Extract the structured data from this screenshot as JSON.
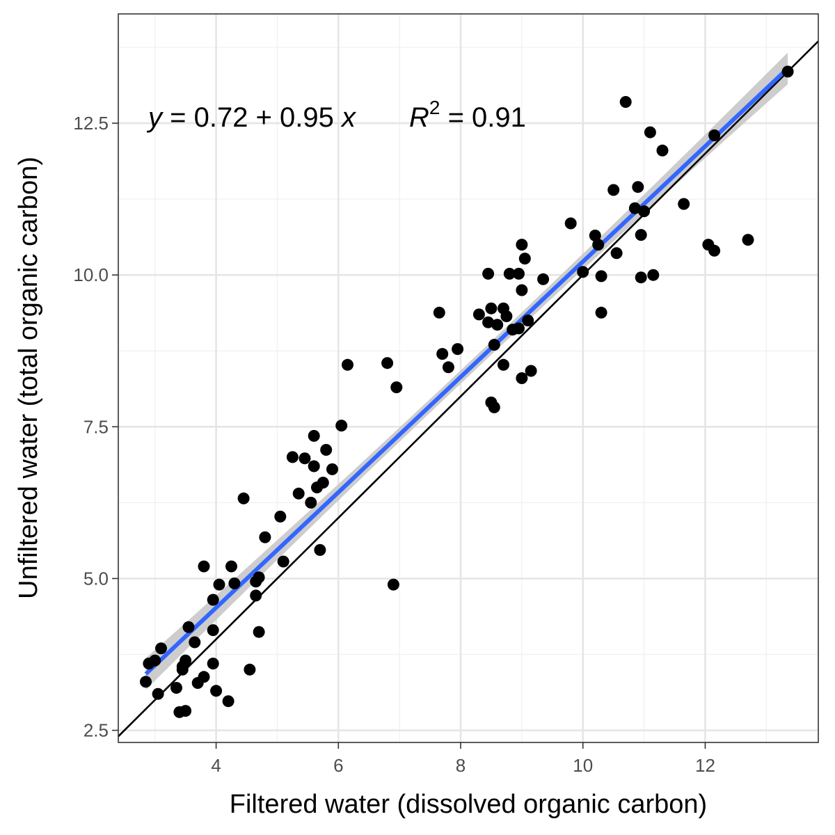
{
  "chart_data": {
    "type": "scatter",
    "xlabel": "Filtered water (dissolved organic carbon)",
    "ylabel": "Unfiltered water (total organic carbon)",
    "xlim": [
      2.4,
      13.85
    ],
    "ylim": [
      2.3,
      14.3
    ],
    "x_ticks": [
      4,
      6,
      8,
      10,
      12
    ],
    "x_tick_labels": [
      "4",
      "6",
      "8",
      "10",
      "12"
    ],
    "y_ticks": [
      2.5,
      5.0,
      7.5,
      10.0,
      12.5
    ],
    "y_tick_labels": [
      "2.5",
      "5.0",
      "7.5",
      "10.0",
      "12.5"
    ],
    "grid": true,
    "annotation": {
      "y_var": "y",
      "equation_rest": " = 0.72 + 0.95 ",
      "x_var": "x",
      "r_symbol": "R",
      "r_power": "2",
      "r_value": " = 0.91"
    },
    "regression": {
      "intercept": 0.72,
      "slope": 0.95,
      "x_range": [
        2.85,
        13.35
      ],
      "color": "#3366ff",
      "ci_color": "#c8c8c8"
    },
    "reference_line": {
      "slope": 1,
      "intercept": 0,
      "color": "#000000"
    },
    "points": [
      [
        2.85,
        3.3
      ],
      [
        2.9,
        3.6
      ],
      [
        3.0,
        3.65
      ],
      [
        3.05,
        3.1
      ],
      [
        3.1,
        3.85
      ],
      [
        3.35,
        3.2
      ],
      [
        3.4,
        2.8
      ],
      [
        3.45,
        3.5
      ],
      [
        3.45,
        3.55
      ],
      [
        3.5,
        2.82
      ],
      [
        3.5,
        3.65
      ],
      [
        3.55,
        4.2
      ],
      [
        3.65,
        3.95
      ],
      [
        3.7,
        3.28
      ],
      [
        3.8,
        5.2
      ],
      [
        3.8,
        3.38
      ],
      [
        3.95,
        4.15
      ],
      [
        3.95,
        4.65
      ],
      [
        3.95,
        3.6
      ],
      [
        4.0,
        3.15
      ],
      [
        4.05,
        4.9
      ],
      [
        4.2,
        2.98
      ],
      [
        4.25,
        5.2
      ],
      [
        4.3,
        4.92
      ],
      [
        4.45,
        6.32
      ],
      [
        4.55,
        3.5
      ],
      [
        4.65,
        4.72
      ],
      [
        4.65,
        4.95
      ],
      [
        4.7,
        4.12
      ],
      [
        4.7,
        5.02
      ],
      [
        4.8,
        5.68
      ],
      [
        5.05,
        6.02
      ],
      [
        5.1,
        5.28
      ],
      [
        5.25,
        7.0
      ],
      [
        5.35,
        6.4
      ],
      [
        5.45,
        6.98
      ],
      [
        5.55,
        6.25
      ],
      [
        5.6,
        7.35
      ],
      [
        5.6,
        6.85
      ],
      [
        5.65,
        6.5
      ],
      [
        5.7,
        5.47
      ],
      [
        5.75,
        6.58
      ],
      [
        5.8,
        7.12
      ],
      [
        5.9,
        6.8
      ],
      [
        6.05,
        7.52
      ],
      [
        6.15,
        8.52
      ],
      [
        6.8,
        8.55
      ],
      [
        6.9,
        4.9
      ],
      [
        6.95,
        8.15
      ],
      [
        7.65,
        9.38
      ],
      [
        7.7,
        8.7
      ],
      [
        7.8,
        8.48
      ],
      [
        7.95,
        8.78
      ],
      [
        8.3,
        9.35
      ],
      [
        8.45,
        10.02
      ],
      [
        8.45,
        9.22
      ],
      [
        8.5,
        9.45
      ],
      [
        8.5,
        7.9
      ],
      [
        8.55,
        7.82
      ],
      [
        8.55,
        8.85
      ],
      [
        8.6,
        9.18
      ],
      [
        8.7,
        9.45
      ],
      [
        8.7,
        8.52
      ],
      [
        8.75,
        9.32
      ],
      [
        8.8,
        10.02
      ],
      [
        8.85,
        9.1
      ],
      [
        8.95,
        10.02
      ],
      [
        8.95,
        9.12
      ],
      [
        9.0,
        8.3
      ],
      [
        9.0,
        9.75
      ],
      [
        9.0,
        10.5
      ],
      [
        9.05,
        10.27
      ],
      [
        9.1,
        9.25
      ],
      [
        9.15,
        8.42
      ],
      [
        9.35,
        9.93
      ],
      [
        9.8,
        10.85
      ],
      [
        10.0,
        10.05
      ],
      [
        10.2,
        10.65
      ],
      [
        10.25,
        10.5
      ],
      [
        10.3,
        9.98
      ],
      [
        10.3,
        9.38
      ],
      [
        10.5,
        11.4
      ],
      [
        10.55,
        10.36
      ],
      [
        10.7,
        12.85
      ],
      [
        10.85,
        11.1
      ],
      [
        10.9,
        11.45
      ],
      [
        10.95,
        10.66
      ],
      [
        10.95,
        9.96
      ],
      [
        11.0,
        11.05
      ],
      [
        11.1,
        12.35
      ],
      [
        11.15,
        10.0
      ],
      [
        11.3,
        12.05
      ],
      [
        11.65,
        11.17
      ],
      [
        12.05,
        10.5
      ],
      [
        12.15,
        12.3
      ],
      [
        12.15,
        10.4
      ],
      [
        12.7,
        10.58
      ],
      [
        13.35,
        13.35
      ]
    ]
  }
}
